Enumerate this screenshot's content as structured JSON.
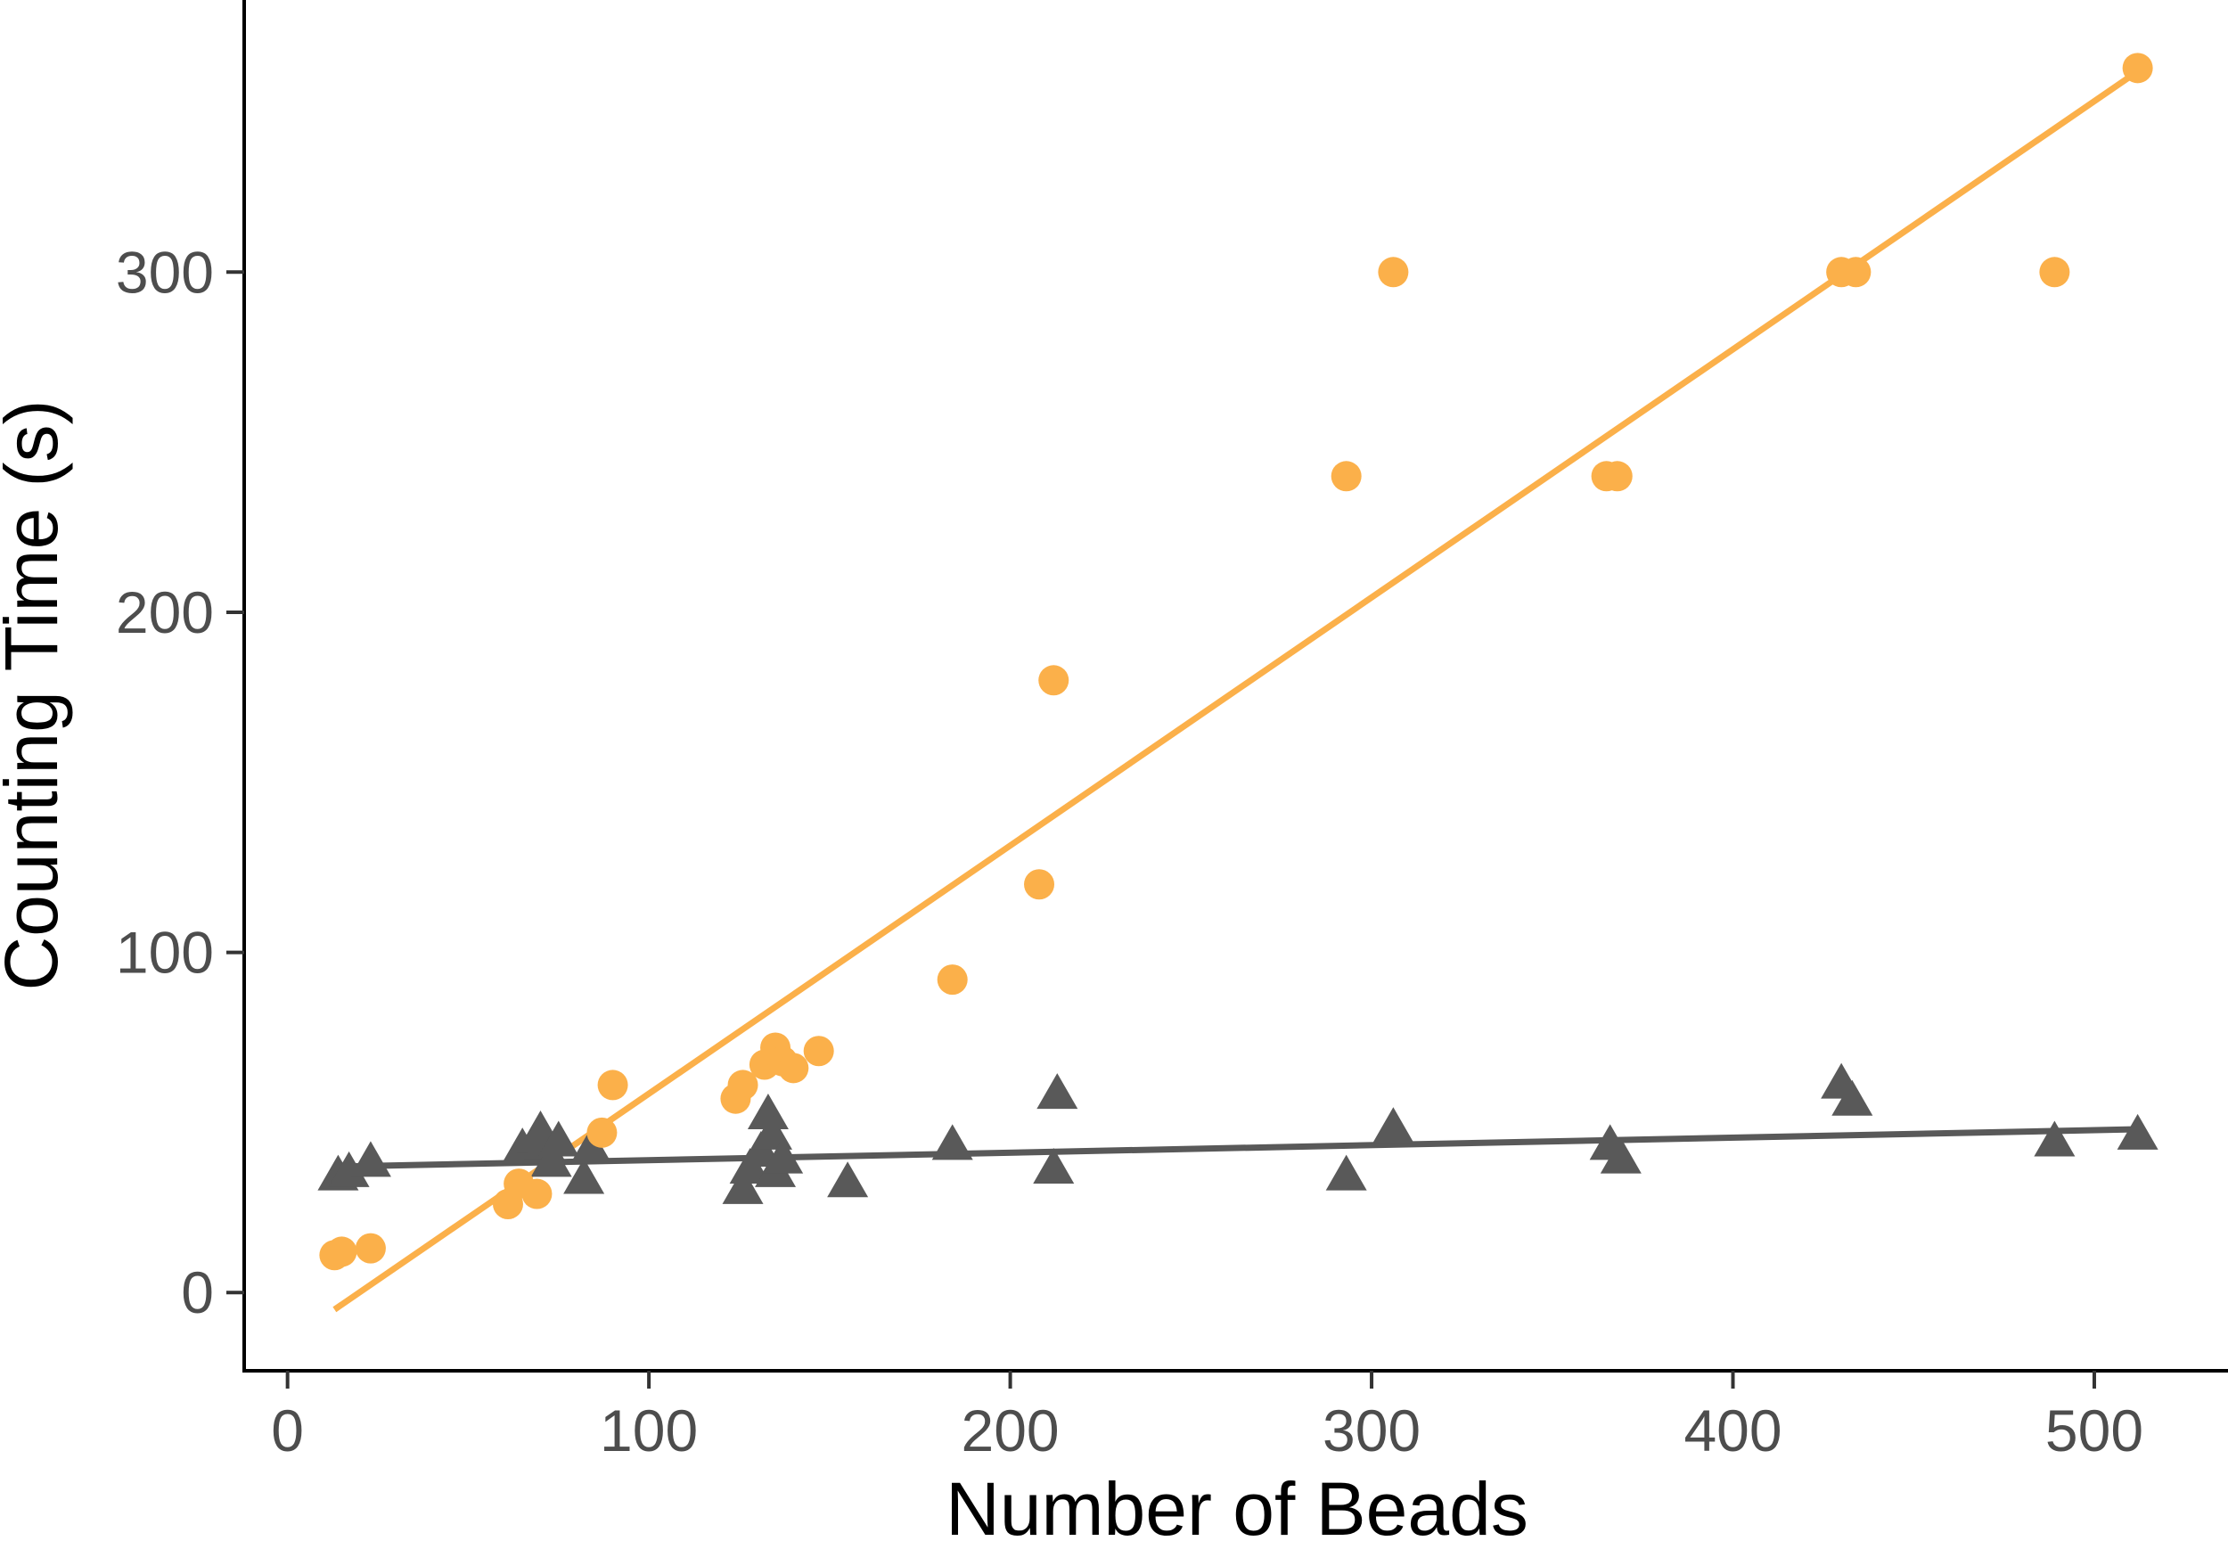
{
  "chart_data": {
    "type": "scatter",
    "xlabel": "Number of Beads",
    "ylabel": "Counting Time (s)",
    "xlim": [
      -12,
      537
    ],
    "ylim": [
      -23,
      380
    ],
    "x_ticks": [
      0,
      100,
      200,
      300,
      400,
      500
    ],
    "y_ticks": [
      0,
      100,
      200,
      300
    ],
    "grid": false,
    "legend": "none",
    "series": [
      {
        "marker": "circle",
        "color": "#FBB04A",
        "points": [
          [
            13,
            11
          ],
          [
            15,
            12
          ],
          [
            23,
            13
          ],
          [
            61,
            26
          ],
          [
            64,
            32
          ],
          [
            69,
            29
          ],
          [
            87,
            47
          ],
          [
            90,
            61
          ],
          [
            124,
            57
          ],
          [
            126,
            61
          ],
          [
            132,
            67
          ],
          [
            135,
            72
          ],
          [
            137,
            68
          ],
          [
            140,
            66
          ],
          [
            147,
            71
          ],
          [
            184,
            92
          ],
          [
            208,
            120
          ],
          [
            212,
            180
          ],
          [
            293,
            240
          ],
          [
            306,
            300
          ],
          [
            365,
            240
          ],
          [
            368,
            240
          ],
          [
            430,
            300
          ],
          [
            434,
            300
          ],
          [
            489,
            300
          ],
          [
            512,
            360
          ]
        ],
        "trend": [
          [
            13,
            -5
          ],
          [
            512,
            359
          ]
        ]
      },
      {
        "marker": "triangle",
        "color": "#595959",
        "points": [
          [
            14,
            34
          ],
          [
            17,
            35
          ],
          [
            23,
            38
          ],
          [
            65,
            42
          ],
          [
            69,
            45
          ],
          [
            70,
            47
          ],
          [
            71,
            43
          ],
          [
            73,
            38
          ],
          [
            75,
            44
          ],
          [
            82,
            33
          ],
          [
            84,
            42
          ],
          [
            126,
            30
          ],
          [
            128,
            36
          ],
          [
            131,
            41
          ],
          [
            133,
            52
          ],
          [
            134,
            46
          ],
          [
            135,
            35
          ],
          [
            137,
            39
          ],
          [
            155,
            32
          ],
          [
            184,
            43
          ],
          [
            212,
            36
          ],
          [
            213,
            58
          ],
          [
            293,
            34
          ],
          [
            306,
            48
          ],
          [
            366,
            43
          ],
          [
            369,
            39
          ],
          [
            430,
            61
          ],
          [
            433,
            56
          ],
          [
            489,
            44
          ],
          [
            512,
            46
          ]
        ],
        "trend": [
          [
            13,
            37
          ],
          [
            512,
            48
          ]
        ]
      }
    ]
  }
}
